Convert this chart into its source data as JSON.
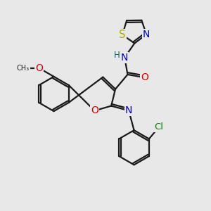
{
  "bg_color": "#e8e8e8",
  "bond_color": "#1a1a1a",
  "bond_width": 1.6,
  "atom_colors": {
    "O": "#dd0000",
    "N": "#0000cc",
    "S": "#aaaa00",
    "Cl": "#008800",
    "H_label": "#006666",
    "C": "#1a1a1a"
  },
  "font_size": 8.5
}
